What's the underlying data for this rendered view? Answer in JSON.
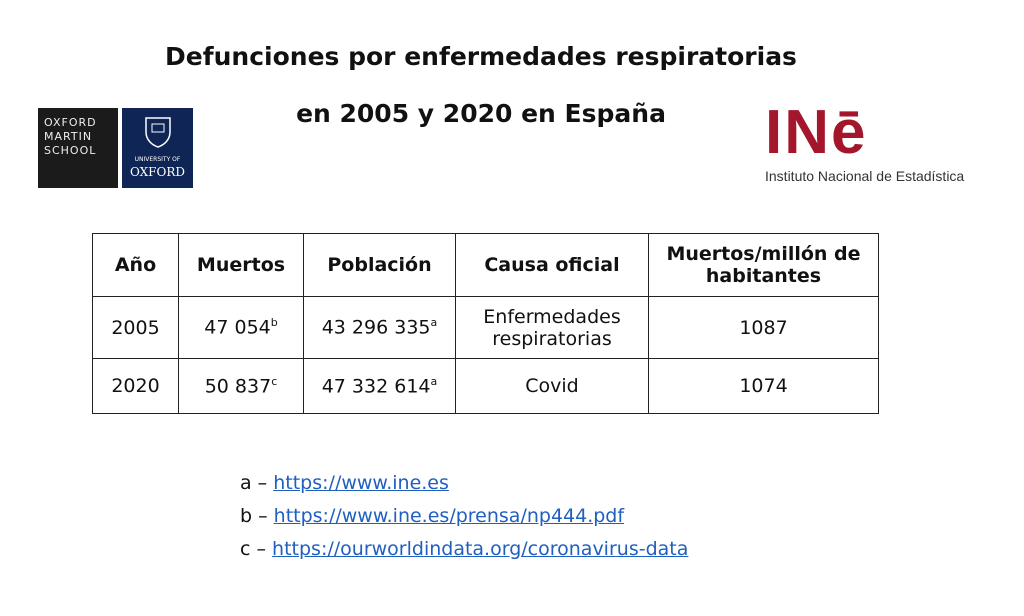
{
  "header": {
    "title_lines": [
      "Defunciones por enfermedades respiratorias",
      "en 2005 y 2020 en España"
    ]
  },
  "logos": {
    "oxford": {
      "left_lines": [
        "OXFORD",
        "MARTIN",
        "SCHOOL"
      ],
      "right_lines": [
        "UNIVERSITY OF",
        "OXFORD"
      ]
    },
    "ine": {
      "mark": "INē",
      "name": "Instituto Nacional de Estadística"
    }
  },
  "table": {
    "headers": [
      "Año",
      "Muertos",
      "Población",
      "Causa oficial",
      "Muertos/millón de habitantes"
    ],
    "rows": [
      [
        {
          "text": "2005"
        },
        {
          "text": "47 054",
          "note": "b"
        },
        {
          "text": "43 296 335",
          "note": "a"
        },
        {
          "text": "Enfermedades respiratorias"
        },
        {
          "text": "1087"
        }
      ],
      [
        {
          "text": "2020"
        },
        {
          "text": "50 837",
          "note": "c"
        },
        {
          "text": "47 332 614",
          "note": "a"
        },
        {
          "text": "Covid"
        },
        {
          "text": "1074"
        }
      ]
    ]
  },
  "footnotes": [
    {
      "prefix": "a –",
      "url": "https://www.ine.es"
    },
    {
      "prefix": "b –",
      "url": "https://www.ine.es/prensa/np444.pdf"
    },
    {
      "prefix": "c –",
      "url": "https://ourworldindata.org/coronavirus-data"
    }
  ]
}
